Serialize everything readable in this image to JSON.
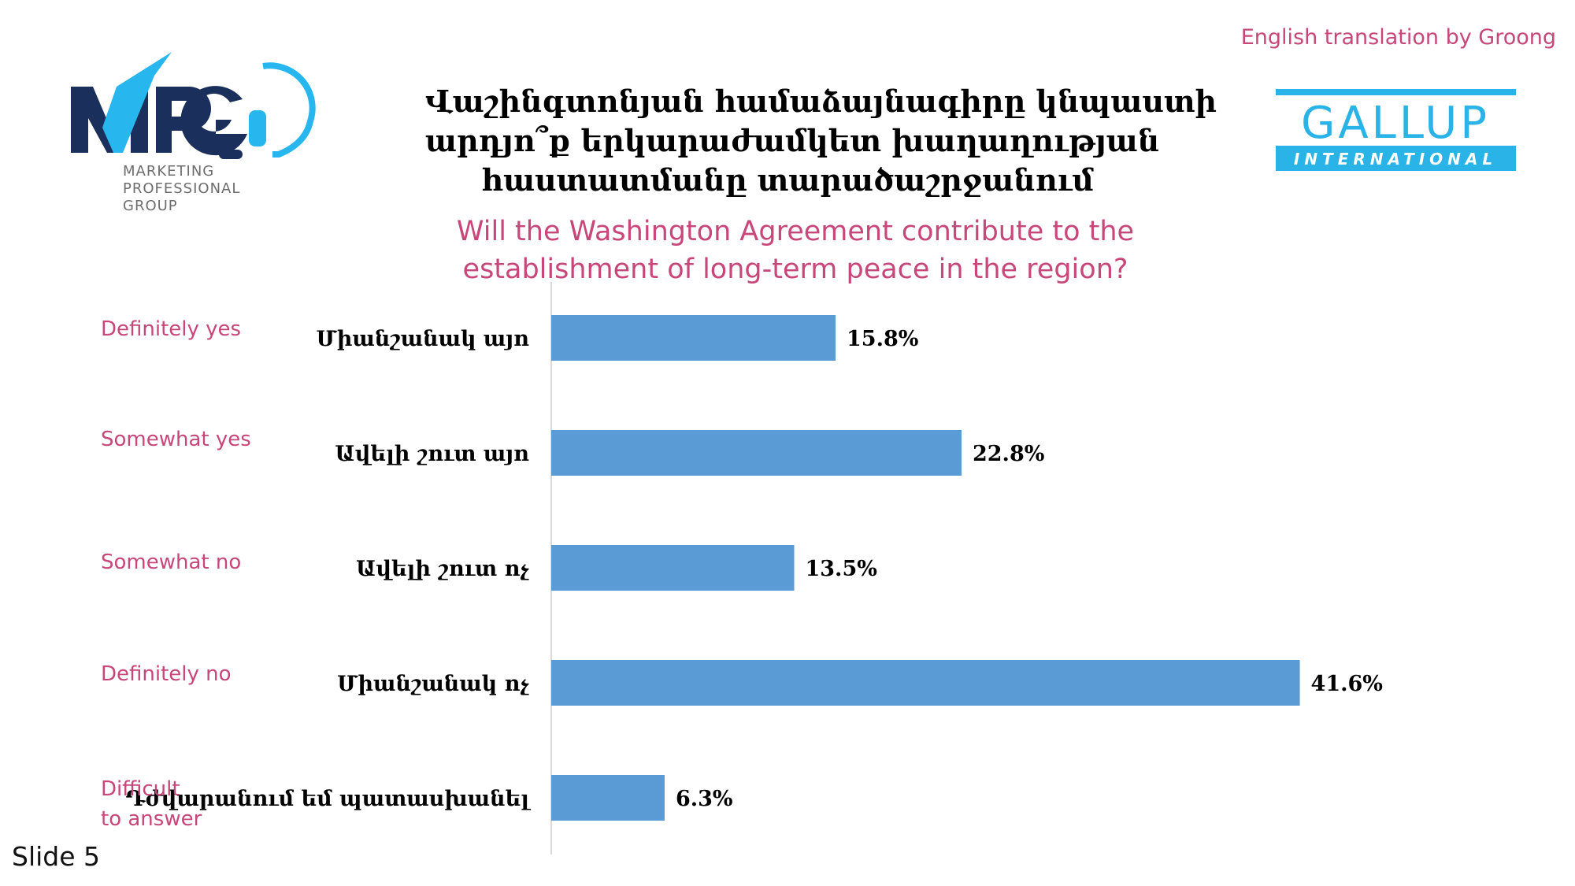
{
  "credit": "English translation by Groong",
  "logos": {
    "mpg": {
      "mark": "MPG",
      "tagline": [
        "MARKETING",
        "PROFESSIONAL",
        "GROUP"
      ]
    },
    "gallup": {
      "wordmark": "GALLUP",
      "sub": "INTERNATIONAL"
    }
  },
  "title_arm_lines": [
    "Վաշինգտոնյան համաձայնագիրը կնպաստի",
    "արդյո՞ք երկարաժամկետ խաղաղության",
    "հաստատմանը տարածաշրջանում"
  ],
  "title_en_lines": [
    "Will the Washington Agreement contribute to the",
    "establishment of long-term peace in the region?"
  ],
  "slide_label": "Slide 5",
  "colors": {
    "bar": "#5b9bd5",
    "accent_pink": "#c8477a",
    "gallup_blue": "#2ab3e6",
    "mpg_navy": "#1b2f5c",
    "mpg_cyan": "#27b6ee"
  },
  "chart_data": {
    "type": "bar",
    "orientation": "horizontal",
    "categories": [
      "Միանշանակ այո",
      "Ավելի շուտ այո",
      "Ավելի շուտ ոչ",
      "Միանշանակ ոչ",
      "Դժվարանում եմ պատասխանել"
    ],
    "categories_en": [
      "Definitely yes",
      "Somewhat yes",
      "Somewhat no",
      "Definitely no",
      "Difficult to answer"
    ],
    "values": [
      15.8,
      22.8,
      13.5,
      41.6,
      6.3
    ],
    "value_labels": [
      "15.8%",
      "22.8%",
      "13.5%",
      "41.6%",
      "6.3%"
    ],
    "xlim": [
      0,
      50
    ],
    "grid": false
  }
}
